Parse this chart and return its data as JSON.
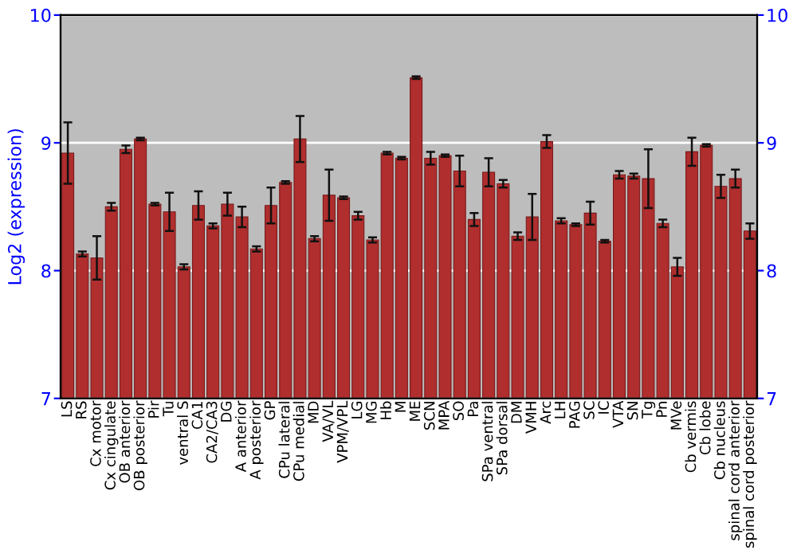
{
  "chart_data": {
    "type": "bar",
    "ylabel": "Log2 (expression)",
    "categories": [
      "LS",
      "RS",
      "Cx motor",
      "Cx cingulate",
      "OB anterior",
      "OB posterior",
      "Pir",
      "Tu",
      "ventral S",
      "CA1",
      "CA2/CA3",
      "DG",
      "A anterior",
      "A posterior",
      "GP",
      "CPu lateral",
      "CPu medial",
      "MD",
      "VA/VL",
      "VPM/VPL",
      "LG",
      "MG",
      "Hb",
      "M",
      "ME",
      "SCN",
      "MPA",
      "SO",
      "Pa",
      "SPa ventral",
      "SPa dorsal",
      "DM",
      "VMH",
      "Arc",
      "LH",
      "PAG",
      "SC",
      "IC",
      "VTA",
      "SN",
      "Tg",
      "Pn",
      "MVe",
      "Cb vermis",
      "Cb lobe",
      "Cb nucleus",
      "spinal cord anterior",
      "spinal cord posterior"
    ],
    "values": [
      8.92,
      8.13,
      8.1,
      8.5,
      8.95,
      9.03,
      8.52,
      8.46,
      8.03,
      8.51,
      8.35,
      8.52,
      8.42,
      8.17,
      8.51,
      8.69,
      9.03,
      8.25,
      8.59,
      8.57,
      8.43,
      8.24,
      8.92,
      8.88,
      9.51,
      8.88,
      8.9,
      8.78,
      8.4,
      8.77,
      8.68,
      8.27,
      8.42,
      9.01,
      8.39,
      8.36,
      8.45,
      8.23,
      8.75,
      8.74,
      8.72,
      8.37,
      8.03,
      8.93,
      8.98,
      8.66,
      8.72,
      8.31
    ],
    "errors": [
      0.24,
      0.02,
      0.17,
      0.03,
      0.03,
      0.01,
      0.01,
      0.15,
      0.02,
      0.11,
      0.02,
      0.09,
      0.08,
      0.02,
      0.14,
      0.01,
      0.18,
      0.02,
      0.2,
      0.01,
      0.03,
      0.02,
      0.01,
      0.01,
      0.01,
      0.05,
      0.01,
      0.12,
      0.05,
      0.11,
      0.03,
      0.03,
      0.18,
      0.05,
      0.02,
      0.01,
      0.09,
      0.01,
      0.03,
      0.02,
      0.23,
      0.03,
      0.07,
      0.11,
      0.01,
      0.09,
      0.07,
      0.06
    ],
    "color": "#b02e2e",
    "ylim": [
      7,
      10
    ],
    "yticks": [
      7,
      8,
      9,
      10
    ],
    "y2lim": [
      7,
      10
    ],
    "y2ticks": [
      7,
      8,
      9,
      10
    ],
    "grid": "y",
    "legend": false
  }
}
